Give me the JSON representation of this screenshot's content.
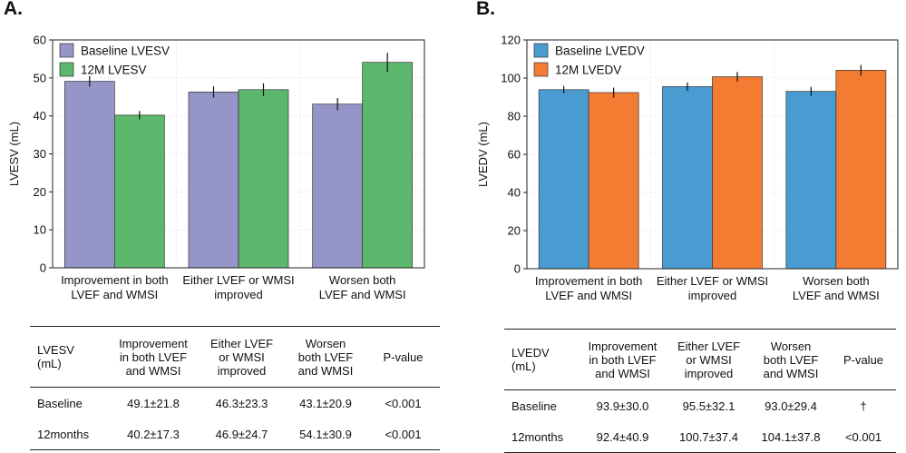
{
  "panels": {
    "a": {
      "letter": "A."
    },
    "b": {
      "letter": "B."
    }
  },
  "chart_data": [
    {
      "type": "bar",
      "panel": "A.",
      "title": "",
      "xlabel": "",
      "ylabel": "LVESV (mL)",
      "ylim": [
        0,
        60
      ],
      "yticks": [
        0,
        10,
        20,
        30,
        40,
        50,
        60
      ],
      "grid": true,
      "legend_position": "top-left",
      "categories": [
        "Improvement in both\nLVEF and WMSI",
        "Either LVEF or WMSI\nimproved",
        "Worsen both\nLVEF and WMSI"
      ],
      "series": [
        {
          "name": "Baseline LVESV",
          "color": "#9595c8",
          "values": [
            49.1,
            46.3,
            43.1
          ],
          "errors": [
            1.4,
            1.5,
            1.6
          ]
        },
        {
          "name": "12M LVESV",
          "color": "#5cb86c",
          "values": [
            40.2,
            46.9,
            54.1
          ],
          "errors": [
            1.1,
            1.7,
            2.5
          ]
        }
      ]
    },
    {
      "type": "bar",
      "panel": "B.",
      "title": "",
      "xlabel": "",
      "ylabel": "LVEDV (mL)",
      "ylim": [
        0,
        120
      ],
      "yticks": [
        0,
        20,
        40,
        60,
        80,
        100,
        120
      ],
      "grid": true,
      "legend_position": "top-left",
      "categories": [
        "Improvement in both\nLVEF and WMSI",
        "Either LVEF or WMSI\nimproved",
        "Worsen both\nLVEF and WMSI"
      ],
      "series": [
        {
          "name": "Baseline LVEDV",
          "color": "#4a9bd1",
          "values": [
            93.9,
            95.5,
            93.0
          ],
          "errors": [
            1.9,
            2.2,
            2.4
          ]
        },
        {
          "name": "12M LVEDV",
          "color": "#f47b32",
          "values": [
            92.4,
            100.7,
            104.1
          ],
          "errors": [
            2.6,
            2.5,
            2.8
          ]
        }
      ]
    }
  ],
  "tables": {
    "a": {
      "header": [
        "LVESV\n(mL)",
        "Improvement\nin both LVEF\nand WMSI",
        "Either LVEF\nor WMSI\nimproved",
        "Worsen\nboth LVEF\nand WMSI",
        "P-value"
      ],
      "rows": [
        [
          "Baseline",
          "49.1±21.8",
          "46.3±23.3",
          "43.1±20.9",
          "<0.001"
        ],
        [
          "12months",
          "40.2±17.3",
          "46.9±24.7",
          "54.1±30.9",
          "<0.001"
        ]
      ]
    },
    "b": {
      "header": [
        "LVEDV\n(mL)",
        "Improvement\nin both LVEF\nand WMSI",
        "Either LVEF\nor WMSI\nimproved",
        "Worsen\nboth LVEF\nand WMSI",
        "P-value"
      ],
      "rows": [
        [
          "Baseline",
          "93.9±30.0",
          "95.5±32.1",
          "93.0±29.4",
          "†"
        ],
        [
          "12months",
          "92.4±40.9",
          "100.7±37.4",
          "104.1±37.8",
          "<0.001"
        ]
      ]
    }
  }
}
